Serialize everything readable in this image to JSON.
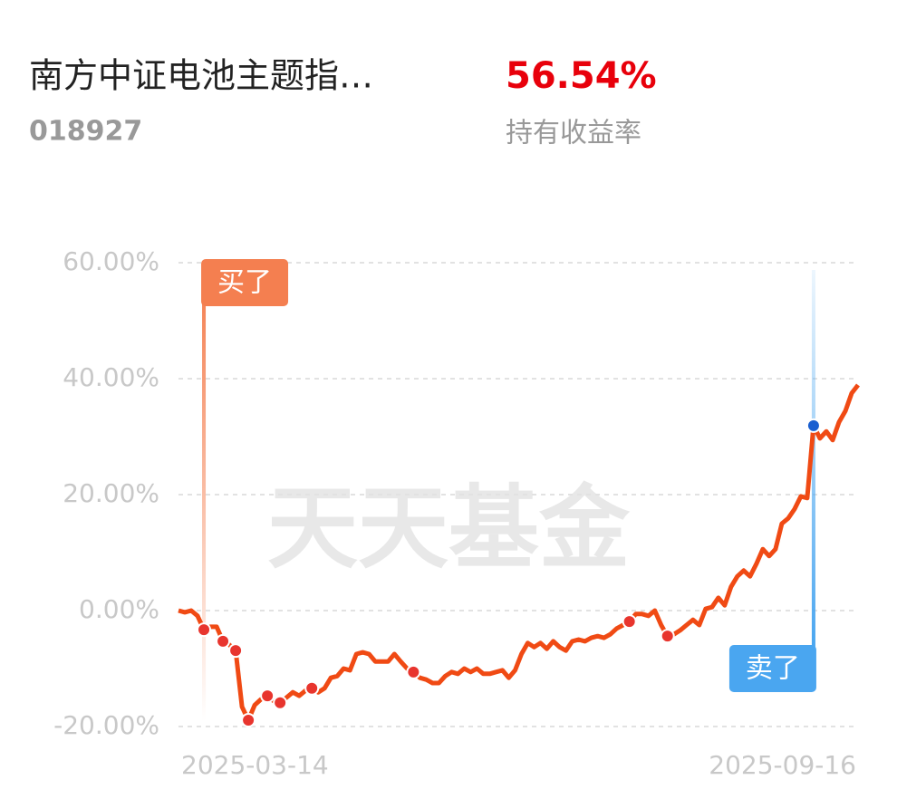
{
  "header": {
    "fund_name": "南方中证电池主题指…",
    "fund_code": "018927",
    "return_value": "56.54%",
    "return_label": "持有收益率"
  },
  "chart_data": {
    "type": "line",
    "series": [
      {
        "name": "持有收益率",
        "color": "#f04a14",
        "values": [
          0,
          -0.3,
          0,
          -0.9,
          -3.3,
          -2.8,
          -2.8,
          -5.3,
          -5.9,
          -6.9,
          -16.6,
          -18.9,
          -16.3,
          -15.3,
          -14.7,
          -15.6,
          -15.9,
          -15.0,
          -14.1,
          -14.7,
          -13.8,
          -13.4,
          -14.1,
          -13.4,
          -11.6,
          -11.3,
          -10.0,
          -10.3,
          -7.5,
          -7.2,
          -7.5,
          -8.8,
          -8.8,
          -8.8,
          -7.5,
          -8.8,
          -10.0,
          -10.6,
          -11.6,
          -11.9,
          -12.5,
          -12.5,
          -11.3,
          -10.6,
          -10.9,
          -10.0,
          -10.6,
          -10.0,
          -10.9,
          -10.9,
          -10.6,
          -10.3,
          -11.6,
          -10.3,
          -7.5,
          -5.6,
          -6.3,
          -5.6,
          -6.6,
          -5.3,
          -6.3,
          -6.9,
          -5.3,
          -5.0,
          -5.3,
          -4.7,
          -4.4,
          -4.7,
          -4.1,
          -3.1,
          -2.5,
          -1.9,
          -0.6,
          -0.6,
          -0.9,
          0,
          -2.5,
          -4.4,
          -4.1,
          -3.4,
          -2.5,
          -1.6,
          -2.5,
          0.3,
          0.6,
          2.2,
          0.9,
          4.1,
          5.9,
          6.9,
          5.9,
          8.1,
          10.6,
          9.4,
          10.6,
          15.0,
          15.9,
          17.5,
          19.7,
          19.4,
          31.9,
          29.7,
          30.9,
          29.4,
          32.5,
          34.4,
          37.5,
          38.9
        ]
      }
    ],
    "ylim": [
      -20,
      60
    ],
    "yticks": [
      {
        "value": 60,
        "label": "60.00%"
      },
      {
        "value": 40,
        "label": "40.00%"
      },
      {
        "value": 20,
        "label": "20.00%"
      },
      {
        "value": 0,
        "label": "0.00%"
      },
      {
        "value": -20,
        "label": "-20.00%"
      }
    ],
    "grid": true,
    "x_labels": [
      "2025-03-14",
      "2025-09-16"
    ],
    "trade_points": [
      4,
      7,
      9,
      11,
      14,
      16,
      21,
      37,
      71,
      77
    ],
    "buy": {
      "label": "买了",
      "color": "#f47f50"
    },
    "sell": {
      "label": "卖了",
      "color": "#4aa6f0",
      "index": 100,
      "point_color": "#1a5fd0"
    },
    "watermark": "天天基金"
  }
}
